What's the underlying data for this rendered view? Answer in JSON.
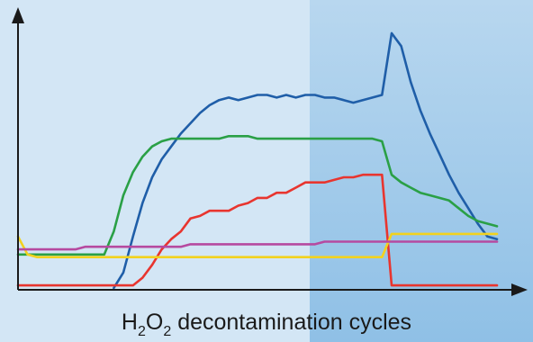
{
  "colors": {
    "background_left": "#d3e6f5",
    "background_right": "#8fc0e6",
    "axis": "#1a1a1a"
  },
  "xlabel": {
    "text_a": "H",
    "sub_a": "2",
    "text_b": "O",
    "sub_b": "2",
    "text_c": " decontamination cycles"
  },
  "chart_data": {
    "type": "line",
    "title": "",
    "xlabel": "H2O2 decontamination cycles",
    "ylabel": "",
    "xlim": [
      0,
      100
    ],
    "ylim": [
      0,
      100
    ],
    "grid": false,
    "legend": "none",
    "x": [
      0,
      2,
      4,
      6,
      8,
      10,
      12,
      14,
      16,
      18,
      20,
      22,
      24,
      26,
      28,
      30,
      32,
      34,
      36,
      38,
      40,
      42,
      44,
      46,
      48,
      50,
      52,
      54,
      56,
      58,
      60,
      62,
      64,
      66,
      68,
      70,
      72,
      74,
      76,
      78,
      80,
      82,
      84,
      86,
      88,
      90,
      92,
      94,
      96,
      98,
      100
    ],
    "series": [
      {
        "color": "#1f5ea8",
        "values": [
          null,
          null,
          null,
          null,
          null,
          null,
          null,
          null,
          null,
          null,
          0,
          6,
          20,
          33,
          43,
          50,
          55,
          60,
          64,
          68,
          71,
          73,
          74,
          73,
          74,
          75,
          75,
          74,
          75,
          74,
          75,
          75,
          74,
          74,
          73,
          72,
          73,
          74,
          75,
          99,
          94,
          80,
          69,
          60,
          52,
          44,
          37,
          31,
          25,
          20,
          19
        ]
      },
      {
        "color": "#2aa046",
        "values": [
          13,
          13,
          13,
          13,
          13,
          13,
          13,
          13,
          13,
          13,
          22,
          36,
          45,
          51,
          55,
          57,
          58,
          58,
          58,
          58,
          58,
          58,
          59,
          59,
          59,
          58,
          58,
          58,
          58,
          58,
          58,
          58,
          58,
          58,
          58,
          58,
          58,
          58,
          57,
          44,
          41,
          39,
          37,
          36,
          35,
          34,
          31,
          28,
          26,
          25,
          24
        ]
      },
      {
        "color": "#e8352f",
        "values": [
          1,
          1,
          1,
          1,
          1,
          1,
          1,
          1,
          1,
          1,
          1,
          1,
          1,
          4,
          9,
          15,
          19,
          22,
          27,
          28,
          30,
          30,
          30,
          32,
          33,
          35,
          35,
          37,
          37,
          39,
          41,
          41,
          41,
          42,
          43,
          43,
          44,
          44,
          44,
          1,
          1,
          1,
          1,
          1,
          1,
          1,
          1,
          1,
          1,
          1,
          1
        ]
      },
      {
        "color": "#f2d21e",
        "values": [
          20,
          13,
          12,
          12,
          12,
          12,
          12,
          12,
          12,
          12,
          12,
          12,
          12,
          12,
          12,
          12,
          12,
          12,
          12,
          12,
          12,
          12,
          12,
          12,
          12,
          12,
          12,
          12,
          12,
          12,
          12,
          12,
          12,
          12,
          12,
          12,
          12,
          12,
          12,
          21,
          21,
          21,
          21,
          21,
          21,
          21,
          21,
          21,
          21,
          21,
          21
        ]
      },
      {
        "color": "#b64aa0",
        "values": [
          15,
          15,
          15,
          15,
          15,
          15,
          15,
          16,
          16,
          16,
          16,
          16,
          16,
          16,
          16,
          16,
          16,
          16,
          17,
          17,
          17,
          17,
          17,
          17,
          17,
          17,
          17,
          17,
          17,
          17,
          17,
          17,
          18,
          18,
          18,
          18,
          18,
          18,
          18,
          18,
          18,
          18,
          18,
          18,
          18,
          18,
          18,
          18,
          18,
          18,
          18
        ]
      }
    ]
  }
}
